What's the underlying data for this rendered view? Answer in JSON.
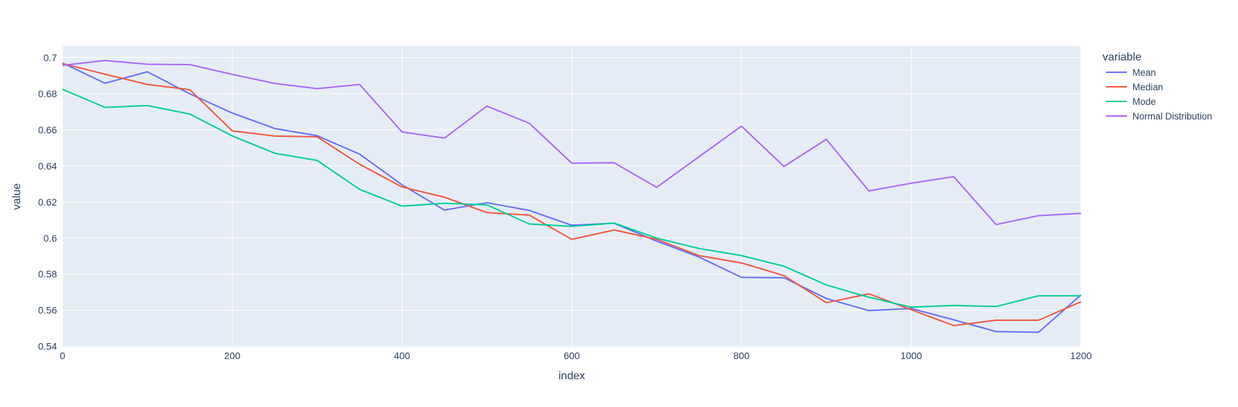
{
  "chart_data": {
    "type": "line",
    "xlabel": "index",
    "ylabel": "value",
    "xlim": [
      0,
      1200
    ],
    "ylim": [
      0.5395,
      0.7065
    ],
    "xticks": [
      0,
      200,
      400,
      600,
      800,
      1000,
      1200
    ],
    "yticks": [
      0.54,
      0.56,
      0.58,
      0.6,
      0.62,
      0.64,
      0.66,
      0.68,
      0.7
    ],
    "ytick_labels": [
      "0.54",
      "0.56",
      "0.58",
      "0.6",
      "0.62",
      "0.64",
      "0.66",
      "0.68",
      "0.7"
    ],
    "grid": true,
    "legend_title": "variable",
    "legend_position": "right",
    "x": [
      0,
      50,
      100,
      150,
      200,
      250,
      300,
      350,
      400,
      450,
      500,
      550,
      600,
      650,
      700,
      750,
      800,
      850,
      900,
      950,
      1000,
      1050,
      1100,
      1150,
      1200
    ],
    "series": [
      {
        "name": "Mean",
        "color": "#636efa",
        "values": [
          0.697,
          0.6858,
          0.6921,
          0.6799,
          0.6693,
          0.6607,
          0.6567,
          0.6465,
          0.6295,
          0.6155,
          0.6196,
          0.6153,
          0.6071,
          0.6082,
          0.5983,
          0.5895,
          0.5782,
          0.578,
          0.5665,
          0.5598,
          0.561,
          0.5547,
          0.5482,
          0.5478,
          0.5685
        ]
      },
      {
        "name": "Median",
        "color": "#ef553b",
        "values": [
          0.6967,
          0.6908,
          0.6851,
          0.6822,
          0.6594,
          0.6565,
          0.6561,
          0.6409,
          0.6283,
          0.6226,
          0.6141,
          0.6127,
          0.5993,
          0.6045,
          0.5993,
          0.5903,
          0.5862,
          0.5792,
          0.5642,
          0.5691,
          0.5603,
          0.5515,
          0.5545,
          0.5545,
          0.5647
        ]
      },
      {
        "name": "Mode",
        "color": "#00cc96",
        "values": [
          0.6824,
          0.6724,
          0.6734,
          0.6687,
          0.6566,
          0.647,
          0.643,
          0.627,
          0.6177,
          0.6193,
          0.6184,
          0.6078,
          0.6065,
          0.6083,
          0.6,
          0.5942,
          0.5903,
          0.5844,
          0.574,
          0.5672,
          0.5617,
          0.5627,
          0.5621,
          0.568,
          0.568
        ]
      },
      {
        "name": "Normal Distribution",
        "color": "#ab63fa",
        "values": [
          0.6957,
          0.6984,
          0.6963,
          0.6961,
          0.6907,
          0.6857,
          0.6828,
          0.6851,
          0.6588,
          0.6554,
          0.6731,
          0.6636,
          0.6415,
          0.6417,
          0.6281,
          0.6451,
          0.662,
          0.6397,
          0.6547,
          0.6261,
          0.6304,
          0.634,
          0.6075,
          0.6124,
          0.6137
        ]
      }
    ]
  }
}
